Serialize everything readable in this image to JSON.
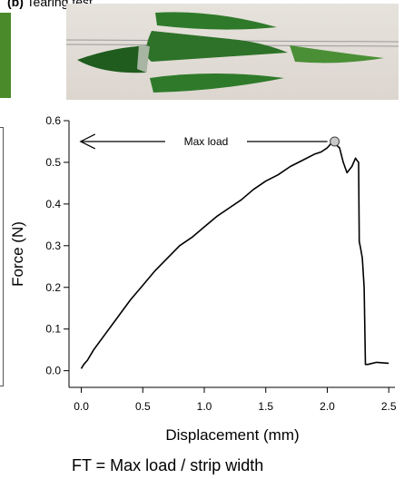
{
  "panel": {
    "letter": "(b)",
    "title": "Tearing test",
    "formula": "FT = Max load / strip width"
  },
  "photo": {
    "description_icon": "leaf-strips-icon",
    "colors": {
      "leaf": "#2f7a2a",
      "leaf_dark": "#1f5c1e",
      "background": "#e3dfd9"
    }
  },
  "chart_data": {
    "type": "line",
    "xlabel": "Displacement (mm)",
    "ylabel": "Force (N)",
    "xlim": [
      -0.1,
      2.55
    ],
    "ylim": [
      -0.04,
      0.6
    ],
    "xticks": [
      0.0,
      0.5,
      1.0,
      1.5,
      2.0,
      2.5
    ],
    "xtick_labels": [
      "0.0",
      "0.5",
      "1.0",
      "1.5",
      "2.0",
      "2.5"
    ],
    "yticks": [
      0.0,
      0.1,
      0.2,
      0.3,
      0.4,
      0.5,
      0.6
    ],
    "ytick_labels": [
      "0.0",
      "0.1",
      "0.2",
      "0.3",
      "0.4",
      "0.5",
      "0.6"
    ],
    "grid": false,
    "series": [
      {
        "x": [
          0.0,
          0.02,
          0.05,
          0.1,
          0.2,
          0.3,
          0.4,
          0.5,
          0.6,
          0.7,
          0.8,
          0.9,
          1.0,
          1.1,
          1.2,
          1.3,
          1.4,
          1.5,
          1.6,
          1.7,
          1.8,
          1.9,
          1.95,
          2.0,
          2.03,
          2.06,
          2.08,
          2.1,
          2.13,
          2.16,
          2.2,
          2.23,
          2.24,
          2.255,
          2.26,
          2.27,
          2.285,
          2.3,
          2.31,
          2.33,
          2.4,
          2.5
        ],
        "y": [
          0.005,
          0.015,
          0.025,
          0.05,
          0.09,
          0.13,
          0.17,
          0.205,
          0.24,
          0.27,
          0.3,
          0.32,
          0.345,
          0.37,
          0.39,
          0.41,
          0.435,
          0.455,
          0.47,
          0.49,
          0.505,
          0.52,
          0.525,
          0.535,
          0.545,
          0.55,
          0.54,
          0.535,
          0.5,
          0.475,
          0.49,
          0.51,
          0.505,
          0.5,
          0.31,
          0.295,
          0.27,
          0.2,
          0.015,
          0.015,
          0.02,
          0.018
        ],
        "color": "#000000"
      }
    ],
    "annotations": [
      {
        "text": "Max load",
        "x_from": 2.06,
        "x_to": -0.05,
        "y": 0.55,
        "arrow": "left"
      }
    ],
    "max_point": {
      "x": 2.06,
      "y": 0.55,
      "marker_fill": "#c8c8c8"
    }
  }
}
